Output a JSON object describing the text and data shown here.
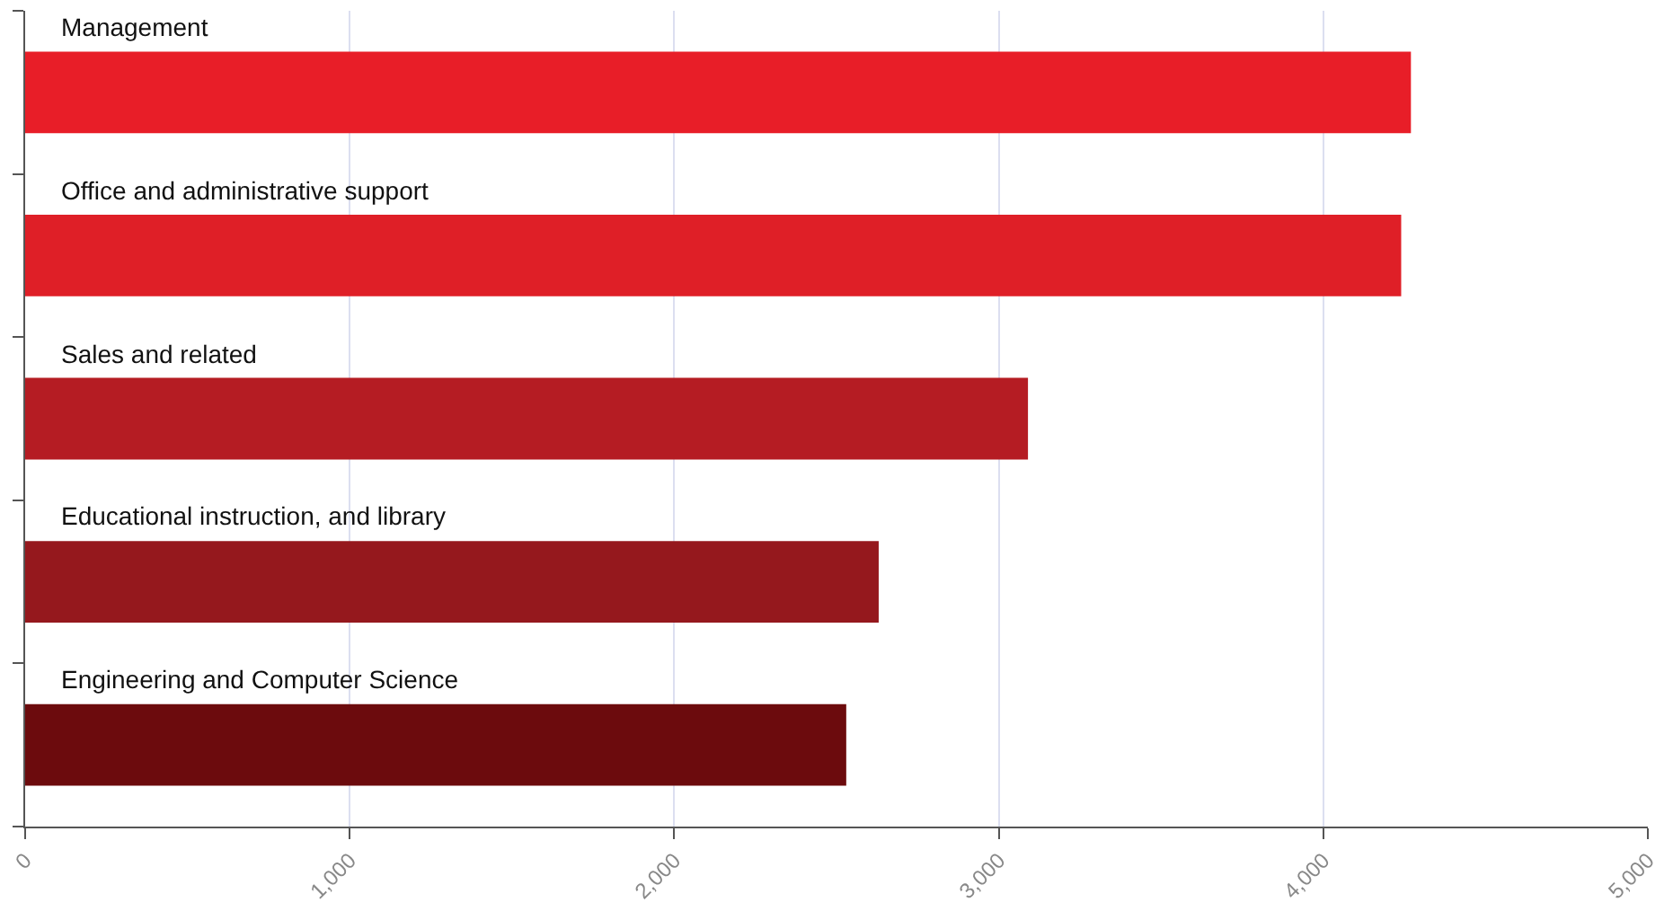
{
  "chart_data": {
    "type": "bar",
    "orientation": "horizontal",
    "categories": [
      "Management",
      "Office and administrative support",
      "Sales and related",
      "Educational instruction, and library",
      "Engineering and Computer Science"
    ],
    "values": [
      4270,
      4240,
      3090,
      2630,
      2530
    ],
    "colors": [
      "#e81e28",
      "#df1f27",
      "#b51c23",
      "#95181d",
      "#6c0b0d"
    ],
    "xlim": [
      0,
      5000
    ],
    "xticks": [
      {
        "value": 0,
        "label": "0"
      },
      {
        "value": 1000,
        "label": "1,000"
      },
      {
        "value": 2000,
        "label": "2,000"
      },
      {
        "value": 3000,
        "label": "3,000"
      },
      {
        "value": 4000,
        "label": "4,000"
      },
      {
        "value": 5000,
        "label": "5,000"
      }
    ],
    "grid": "x"
  }
}
